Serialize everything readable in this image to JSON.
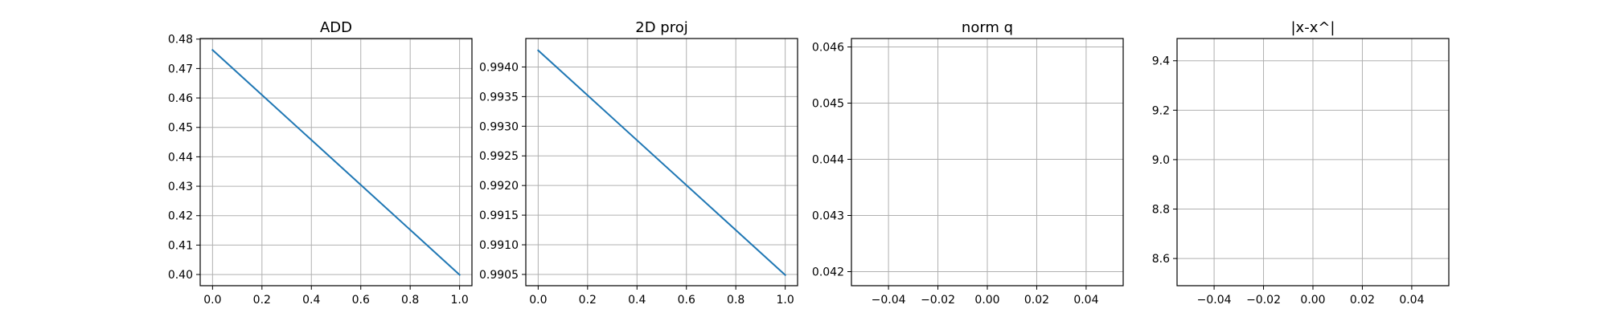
{
  "figure": {
    "background": "#ffffff"
  },
  "chart_data": [
    {
      "type": "line",
      "title": "ADD",
      "xlabel": "",
      "ylabel": "",
      "grid": true,
      "xlim": [
        -0.05,
        1.05
      ],
      "ylim": [
        0.3962,
        0.4802
      ],
      "xticks": [
        0.0,
        0.2,
        0.4,
        0.6,
        0.8,
        1.0
      ],
      "xtick_labels": [
        "0.0",
        "0.2",
        "0.4",
        "0.6",
        "0.8",
        "1.0"
      ],
      "yticks": [
        0.4,
        0.41,
        0.42,
        0.43,
        0.44,
        0.45,
        0.46,
        0.47,
        0.48
      ],
      "ytick_labels": [
        "0.40",
        "0.41",
        "0.42",
        "0.43",
        "0.44",
        "0.45",
        "0.46",
        "0.47",
        "0.48"
      ],
      "series": [
        {
          "x": [
            0,
            1
          ],
          "values": [
            0.4763,
            0.3999
          ],
          "color": "#1f77b4"
        }
      ]
    },
    {
      "type": "line",
      "title": "2D proj",
      "xlabel": "",
      "ylabel": "",
      "grid": true,
      "xlim": [
        -0.05,
        1.05
      ],
      "ylim": [
        0.99031,
        0.99448
      ],
      "xticks": [
        0.0,
        0.2,
        0.4,
        0.6,
        0.8,
        1.0
      ],
      "xtick_labels": [
        "0.0",
        "0.2",
        "0.4",
        "0.6",
        "0.8",
        "1.0"
      ],
      "yticks": [
        0.9905,
        0.991,
        0.9915,
        0.992,
        0.9925,
        0.993,
        0.9935,
        0.994
      ],
      "ytick_labels": [
        "0.9905",
        "0.9910",
        "0.9915",
        "0.9920",
        "0.9925",
        "0.9930",
        "0.9935",
        "0.9940"
      ],
      "series": [
        {
          "x": [
            0,
            1
          ],
          "values": [
            0.99428,
            0.99049
          ],
          "color": "#1f77b4"
        }
      ]
    },
    {
      "type": "line",
      "title": "norm q",
      "xlabel": "",
      "ylabel": "",
      "grid": true,
      "xlim": [
        -0.055,
        0.055
      ],
      "ylim": [
        0.04175,
        0.04615
      ],
      "xticks": [
        -0.04,
        -0.02,
        0.0,
        0.02,
        0.04
      ],
      "xtick_labels": [
        "−0.04",
        "−0.02",
        "0.00",
        "0.02",
        "0.04"
      ],
      "yticks": [
        0.042,
        0.043,
        0.044,
        0.045,
        0.046
      ],
      "ytick_labels": [
        "0.042",
        "0.043",
        "0.044",
        "0.045",
        "0.046"
      ],
      "series": []
    },
    {
      "type": "line",
      "title": "|x-x^|",
      "xlabel": "",
      "ylabel": "",
      "grid": true,
      "xlim": [
        -0.055,
        0.055
      ],
      "ylim": [
        8.49,
        9.49
      ],
      "xticks": [
        -0.04,
        -0.02,
        0.0,
        0.02,
        0.04
      ],
      "xtick_labels": [
        "−0.04",
        "−0.02",
        "0.00",
        "0.02",
        "0.04"
      ],
      "yticks": [
        8.6,
        8.8,
        9.0,
        9.2,
        9.4
      ],
      "ytick_labels": [
        "8.6",
        "8.8",
        "9.0",
        "9.2",
        "9.4"
      ],
      "series": []
    }
  ]
}
